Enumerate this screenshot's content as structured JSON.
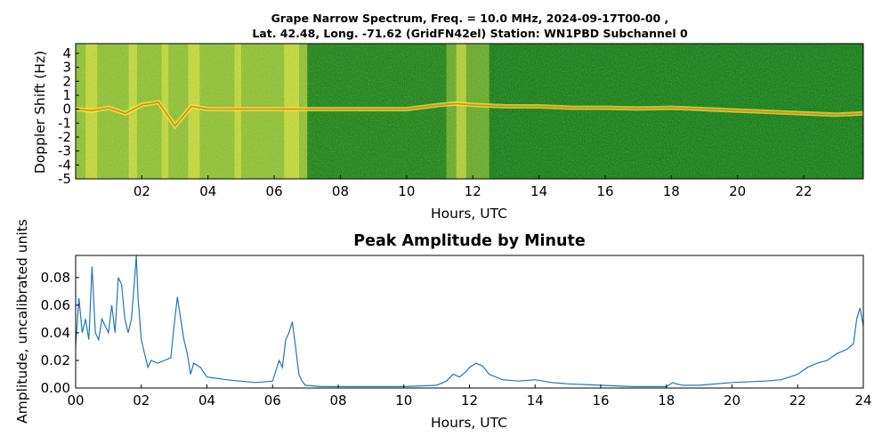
{
  "figure": {
    "title_line1": "Grape Narrow Spectrum, Freq. = 10.0 MHz, 2024-09-17T00-00 ,",
    "title_line2": "Lat.  42.48, Long. -71.62 (GridFN42el) Station: WN1PBD Subchannel 0"
  },
  "chart_data": [
    {
      "type": "heatmap",
      "title": "Grape Narrow Spectrum, Freq. = 10.0 MHz, 2024-09-17T00-00 , Lat.  42.48, Long. -71.62 (GridFN42el) Station: WN1PBD Subchannel 0",
      "xlabel": "Hours, UTC",
      "ylabel": "Doppler Shift (Hz)",
      "xlim": [
        0,
        23.8
      ],
      "ylim": [
        -5,
        4.7
      ],
      "xticks": [
        "02",
        "04",
        "06",
        "08",
        "10",
        "12",
        "14",
        "16",
        "18",
        "20",
        "22"
      ],
      "xtick_values": [
        2,
        4,
        6,
        8,
        10,
        12,
        14,
        16,
        18,
        20,
        22
      ],
      "yticks": [
        "4",
        "3",
        "2",
        "1",
        "0",
        "-1",
        "-2",
        "-3",
        "-4",
        "-5"
      ],
      "ytick_values": [
        4,
        3,
        2,
        1,
        0,
        -1,
        -2,
        -3,
        -4,
        -5
      ],
      "colors": {
        "background": "#0a7d0a",
        "low": "#2f8f12",
        "mid": "#9ccc2a",
        "high": "#f0f03a",
        "peak": "#f08020"
      },
      "trace": {
        "x": [
          0,
          0.5,
          1,
          1.5,
          2,
          2.5,
          3,
          3.5,
          4,
          5,
          6,
          7,
          8,
          9,
          10,
          11,
          11.5,
          12,
          13,
          14,
          15,
          16,
          17,
          18,
          19,
          20,
          21,
          22,
          23,
          23.8
        ],
        "y": [
          0,
          -0.1,
          0.1,
          -0.3,
          0.3,
          0.5,
          -1.2,
          0.2,
          0,
          0,
          0,
          0,
          0,
          0,
          0,
          0.3,
          0.4,
          0.3,
          0.2,
          0.2,
          0.1,
          0.1,
          0.05,
          0.1,
          0,
          -0.1,
          -0.2,
          -0.3,
          -0.4,
          -0.3
        ]
      },
      "activity": [
        {
          "range": [
            0,
            7
          ],
          "level": "high"
        },
        {
          "range": [
            7,
            11.2
          ],
          "level": "low"
        },
        {
          "range": [
            11.2,
            12.5
          ],
          "level": "mid"
        },
        {
          "range": [
            12.5,
            23.8
          ],
          "level": "trace"
        }
      ]
    },
    {
      "type": "line",
      "title": "Peak Amplitude by Minute",
      "xlabel": "Hours, UTC",
      "ylabel": "Amplitude, uncalibrated units",
      "xlim": [
        0,
        24
      ],
      "ylim": [
        0,
        0.096
      ],
      "xticks": [
        "00",
        "02",
        "04",
        "06",
        "08",
        "10",
        "12",
        "14",
        "16",
        "18",
        "20",
        "22",
        "24"
      ],
      "xtick_values": [
        0,
        2,
        4,
        6,
        8,
        10,
        12,
        14,
        16,
        18,
        20,
        22,
        24
      ],
      "yticks": [
        "0.00",
        "0.02",
        "0.04",
        "0.06",
        "0.08"
      ],
      "ytick_values": [
        0,
        0.02,
        0.04,
        0.06,
        0.08
      ],
      "line_color": "#1f77b4",
      "series": [
        {
          "x": [
            0,
            0.1,
            0.2,
            0.3,
            0.4,
            0.5,
            0.6,
            0.7,
            0.8,
            0.9,
            1.0,
            1.1,
            1.2,
            1.3,
            1.4,
            1.5,
            1.6,
            1.7,
            1.8,
            1.85,
            1.9,
            2.0,
            2.1,
            2.2,
            2.3,
            2.5,
            2.7,
            2.9,
            3.0,
            3.1,
            3.2,
            3.3,
            3.4,
            3.5,
            3.6,
            3.8,
            4.0,
            4.3,
            4.6,
            5.0,
            5.5,
            6.0,
            6.2,
            6.3,
            6.4,
            6.5,
            6.6,
            6.7,
            6.8,
            6.9,
            7.0,
            7.5,
            8.0,
            9.0,
            10.0,
            11.0,
            11.3,
            11.5,
            11.7,
            11.9,
            12.0,
            12.2,
            12.4,
            12.6,
            12.8,
            13.0,
            13.5,
            14.0,
            14.5,
            15.0,
            16.0,
            17.0,
            18.0,
            18.2,
            18.3,
            18.5,
            19.0,
            20.0,
            21.0,
            21.5,
            22.0,
            22.3,
            22.6,
            22.9,
            23.2,
            23.5,
            23.7,
            23.8,
            23.9,
            24.0
          ],
          "y": [
            0.03,
            0.065,
            0.04,
            0.05,
            0.035,
            0.088,
            0.04,
            0.035,
            0.05,
            0.045,
            0.04,
            0.06,
            0.04,
            0.08,
            0.075,
            0.05,
            0.04,
            0.05,
            0.08,
            0.096,
            0.065,
            0.035,
            0.025,
            0.015,
            0.02,
            0.018,
            0.02,
            0.022,
            0.045,
            0.066,
            0.05,
            0.035,
            0.025,
            0.01,
            0.018,
            0.015,
            0.008,
            0.007,
            0.006,
            0.005,
            0.004,
            0.005,
            0.02,
            0.015,
            0.035,
            0.04,
            0.048,
            0.03,
            0.01,
            0.005,
            0.002,
            0.001,
            0.001,
            0.001,
            0.001,
            0.002,
            0.005,
            0.01,
            0.008,
            0.012,
            0.015,
            0.018,
            0.016,
            0.01,
            0.008,
            0.006,
            0.005,
            0.006,
            0.004,
            0.003,
            0.002,
            0.001,
            0.001,
            0.004,
            0.003,
            0.002,
            0.002,
            0.004,
            0.005,
            0.006,
            0.01,
            0.015,
            0.018,
            0.02,
            0.025,
            0.028,
            0.032,
            0.05,
            0.058,
            0.045
          ]
        }
      ]
    }
  ]
}
